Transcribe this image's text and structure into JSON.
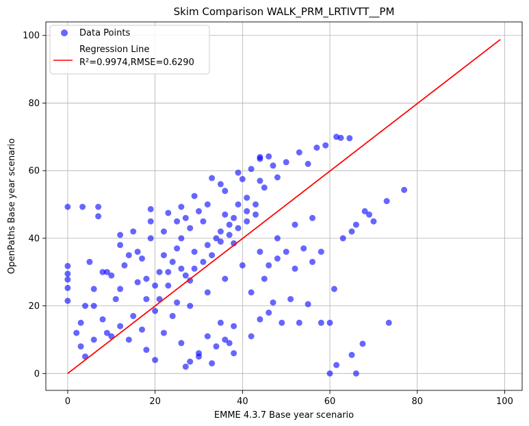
{
  "chart_data": {
    "type": "scatter",
    "title": "Skim Comparison WALK_PRM_LRTIVTT__PM",
    "xlabel": "EMME 4.3.7 Base year scenario",
    "ylabel": "OpenPaths Base year scenario",
    "xlim": [
      -5,
      104
    ],
    "ylim": [
      -5,
      104
    ],
    "xticks": [
      0,
      20,
      40,
      60,
      80,
      100
    ],
    "yticks": [
      0,
      20,
      40,
      60,
      80,
      100
    ],
    "xtick_labels": [
      "0",
      "20",
      "40",
      "60",
      "80",
      "100"
    ],
    "ytick_labels": [
      "0",
      "20",
      "40",
      "60",
      "80",
      "100"
    ],
    "grid": true,
    "legend_position": "top-left",
    "series": [
      {
        "name": "Data Points",
        "kind": "scatter",
        "color": "#0000ff",
        "alpha": 0.6,
        "points": [
          [
            0,
            49.3
          ],
          [
            3.4,
            49.3
          ],
          [
            7,
            49.3
          ],
          [
            7,
            46.5
          ],
          [
            0,
            31.8
          ],
          [
            0,
            29.5
          ],
          [
            0,
            27.8
          ],
          [
            0,
            25.3
          ],
          [
            0,
            21.5
          ],
          [
            12,
            41
          ],
          [
            12,
            38
          ],
          [
            15,
            42
          ],
          [
            19,
            48.6
          ],
          [
            19,
            45
          ],
          [
            23,
            47.5
          ],
          [
            26,
            49.3
          ],
          [
            27,
            46
          ],
          [
            29,
            52.5
          ],
          [
            33,
            57.8
          ],
          [
            35,
            56
          ],
          [
            36,
            54
          ],
          [
            39,
            59.4
          ],
          [
            40,
            57.5
          ],
          [
            42,
            60.5
          ],
          [
            44,
            64
          ],
          [
            44,
            63.5
          ],
          [
            46,
            64.2
          ],
          [
            47,
            61.5
          ],
          [
            50,
            62.5
          ],
          [
            53,
            65.4
          ],
          [
            55,
            62
          ],
          [
            57,
            66.8
          ],
          [
            59,
            67.5
          ],
          [
            61.5,
            70
          ],
          [
            62.5,
            69.7
          ],
          [
            64.5,
            69.6
          ],
          [
            43,
            50
          ],
          [
            38,
            38.5
          ],
          [
            28,
            27.5
          ],
          [
            20,
            18.5
          ],
          [
            10,
            11
          ],
          [
            4,
            5
          ],
          [
            8,
            30
          ],
          [
            5,
            33
          ],
          [
            10,
            29
          ],
          [
            14,
            35
          ],
          [
            17,
            34
          ],
          [
            21,
            30
          ],
          [
            25,
            37
          ],
          [
            28,
            43
          ],
          [
            31,
            45
          ],
          [
            34,
            40
          ],
          [
            37,
            44
          ],
          [
            39,
            50
          ],
          [
            41,
            52
          ],
          [
            45,
            55
          ],
          [
            48,
            58
          ],
          [
            22,
            35
          ],
          [
            26,
            40
          ],
          [
            30,
            48
          ],
          [
            16,
            27
          ],
          [
            11,
            22
          ],
          [
            6,
            20
          ],
          [
            3,
            15
          ],
          [
            8,
            16
          ],
          [
            12,
            25
          ],
          [
            18,
            28
          ],
          [
            24,
            33
          ],
          [
            32,
            50
          ],
          [
            36,
            47
          ],
          [
            44,
            57
          ],
          [
            14,
            10
          ],
          [
            18,
            7
          ],
          [
            22,
            12
          ],
          [
            26,
            9
          ],
          [
            30,
            5
          ],
          [
            34,
            8
          ],
          [
            38,
            6
          ],
          [
            33,
            3
          ],
          [
            27,
            2
          ],
          [
            20,
            4
          ],
          [
            24,
            17
          ],
          [
            28,
            20
          ],
          [
            32,
            24
          ],
          [
            36,
            28
          ],
          [
            40,
            32
          ],
          [
            44,
            36
          ],
          [
            48,
            40
          ],
          [
            52,
            44
          ],
          [
            56,
            46
          ],
          [
            42,
            24
          ],
          [
            45,
            28
          ],
          [
            46,
            32
          ],
          [
            48,
            34
          ],
          [
            50,
            36
          ],
          [
            52,
            31
          ],
          [
            54,
            37
          ],
          [
            56,
            33
          ],
          [
            58,
            36
          ],
          [
            44,
            16
          ],
          [
            46,
            18
          ],
          [
            47,
            21
          ],
          [
            49,
            15
          ],
          [
            51,
            22
          ],
          [
            53,
            15
          ],
          [
            55,
            20.5
          ],
          [
            58,
            15
          ],
          [
            60,
            15
          ],
          [
            61,
            25
          ],
          [
            63,
            40
          ],
          [
            66,
            44
          ],
          [
            65,
            42
          ],
          [
            68,
            48
          ],
          [
            70,
            45
          ],
          [
            69,
            47
          ],
          [
            73,
            51
          ],
          [
            77,
            54.3
          ],
          [
            73.5,
            15
          ],
          [
            67.5,
            8.8
          ],
          [
            65,
            5.5
          ],
          [
            61.5,
            2.5
          ],
          [
            60,
            0
          ],
          [
            66,
            0
          ],
          [
            35,
            15
          ],
          [
            38,
            14
          ],
          [
            42,
            11
          ],
          [
            36,
            10
          ],
          [
            32,
            11
          ],
          [
            37,
            9
          ],
          [
            30,
            6
          ],
          [
            28,
            3.5
          ],
          [
            3,
            8
          ],
          [
            6,
            10
          ],
          [
            9,
            12
          ],
          [
            12,
            14
          ],
          [
            15,
            17
          ],
          [
            17,
            13
          ],
          [
            21,
            22
          ],
          [
            23,
            26
          ],
          [
            25,
            21
          ],
          [
            27,
            29
          ],
          [
            29,
            31
          ],
          [
            31,
            33
          ],
          [
            33,
            35
          ],
          [
            35,
            39
          ],
          [
            37,
            41
          ],
          [
            39,
            43
          ],
          [
            41,
            45
          ],
          [
            43,
            47
          ],
          [
            2,
            12
          ],
          [
            4,
            20
          ],
          [
            6,
            25
          ],
          [
            9,
            30
          ],
          [
            13,
            32
          ],
          [
            16,
            36
          ],
          [
            19,
            40
          ],
          [
            22,
            42
          ],
          [
            25,
            45
          ],
          [
            18,
            22
          ],
          [
            20,
            26
          ],
          [
            23,
            30
          ],
          [
            26,
            31
          ],
          [
            29,
            36
          ],
          [
            32,
            38
          ],
          [
            35,
            42
          ],
          [
            38,
            46
          ],
          [
            41,
            48
          ]
        ]
      },
      {
        "name": "Regression Line",
        "kind": "line",
        "color": "#ff0000",
        "annotation": "R²=0.9974,RMSE=0.6290",
        "x": [
          0,
          99
        ],
        "y": [
          0,
          98.8
        ]
      }
    ]
  }
}
